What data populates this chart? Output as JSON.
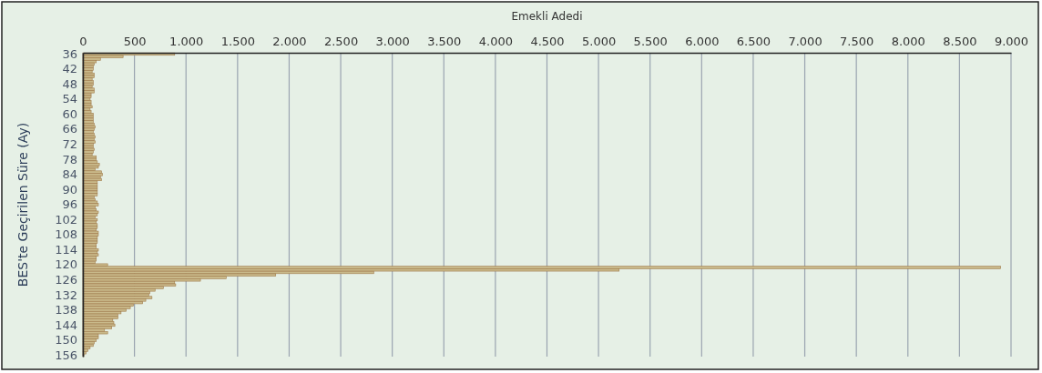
{
  "chart_data": {
    "type": "bar",
    "orientation": "horizontal",
    "xlabel": "Emekli Adedi",
    "ylabel": "BES'te Geçirilen Süre (Ay)",
    "categories": [
      "36",
      null,
      null,
      null,
      null,
      null,
      "42",
      null,
      null,
      null,
      null,
      null,
      "48",
      null,
      null,
      null,
      null,
      null,
      "54",
      null,
      null,
      null,
      null,
      null,
      "60",
      null,
      null,
      null,
      null,
      null,
      "66",
      null,
      null,
      null,
      null,
      null,
      "72",
      null,
      null,
      null,
      null,
      null,
      "78",
      null,
      null,
      null,
      null,
      null,
      "84",
      null,
      null,
      null,
      null,
      null,
      "90",
      null,
      null,
      null,
      null,
      null,
      "96",
      null,
      null,
      null,
      null,
      null,
      "102",
      null,
      null,
      null,
      null,
      null,
      "108",
      null,
      null,
      null,
      null,
      null,
      "114",
      null,
      null,
      null,
      null,
      null,
      "120",
      null,
      null,
      null,
      null,
      null,
      "126",
      null,
      null,
      null,
      null,
      null,
      "132",
      null,
      null,
      null,
      null,
      null,
      "138",
      null,
      null,
      null,
      null,
      null,
      "144",
      null,
      null,
      null,
      null,
      null,
      "150",
      null,
      null,
      null,
      null,
      null,
      "156"
    ],
    "values": [
      890,
      390,
      170,
      130,
      110,
      100,
      100,
      90,
      110,
      110,
      90,
      100,
      100,
      90,
      110,
      110,
      80,
      80,
      70,
      80,
      80,
      90,
      70,
      80,
      100,
      100,
      100,
      100,
      110,
      120,
      110,
      100,
      110,
      120,
      110,
      120,
      100,
      100,
      110,
      100,
      90,
      130,
      130,
      140,
      160,
      150,
      120,
      180,
      190,
      170,
      180,
      140,
      140,
      140,
      140,
      140,
      140,
      110,
      120,
      140,
      150,
      120,
      130,
      150,
      140,
      120,
      140,
      130,
      140,
      140,
      130,
      150,
      150,
      140,
      140,
      140,
      130,
      130,
      150,
      140,
      150,
      130,
      130,
      120,
      240,
      8900,
      5200,
      2820,
      1870,
      1390,
      1140,
      890,
      900,
      780,
      700,
      650,
      640,
      670,
      610,
      580,
      490,
      460,
      420,
      370,
      340,
      340,
      290,
      300,
      310,
      280,
      210,
      240,
      150,
      150,
      130,
      110,
      100,
      70,
      50,
      30,
      10
    ],
    "color": "#c9b98a",
    "xlim": [
      0,
      9000
    ],
    "xticks": [
      0,
      500,
      {
        "value": 1000,
        "label": "1.000"
      },
      {
        "value": 1500,
        "label": "1.500"
      },
      {
        "value": 2000,
        "label": "2.000"
      },
      {
        "value": 2500,
        "label": "2.500"
      },
      {
        "value": 3000,
        "label": "3.000"
      },
      {
        "value": 3500,
        "label": "3.500"
      },
      {
        "value": 4000,
        "label": "4.000"
      },
      {
        "value": 4500,
        "label": "4.500"
      },
      {
        "value": 5000,
        "label": "5.000"
      },
      {
        "value": 5500,
        "label": "5.500"
      },
      {
        "value": 6000,
        "label": "6.000"
      },
      {
        "value": 6500,
        "label": "6.500"
      },
      {
        "value": 7000,
        "label": "7.000"
      },
      {
        "value": 7500,
        "label": "7.500"
      },
      {
        "value": 8000,
        "label": "8.000"
      },
      {
        "value": 8500,
        "label": "8.500"
      },
      {
        "value": 9000,
        "label": "9.000"
      }
    ],
    "grid": "x"
  }
}
